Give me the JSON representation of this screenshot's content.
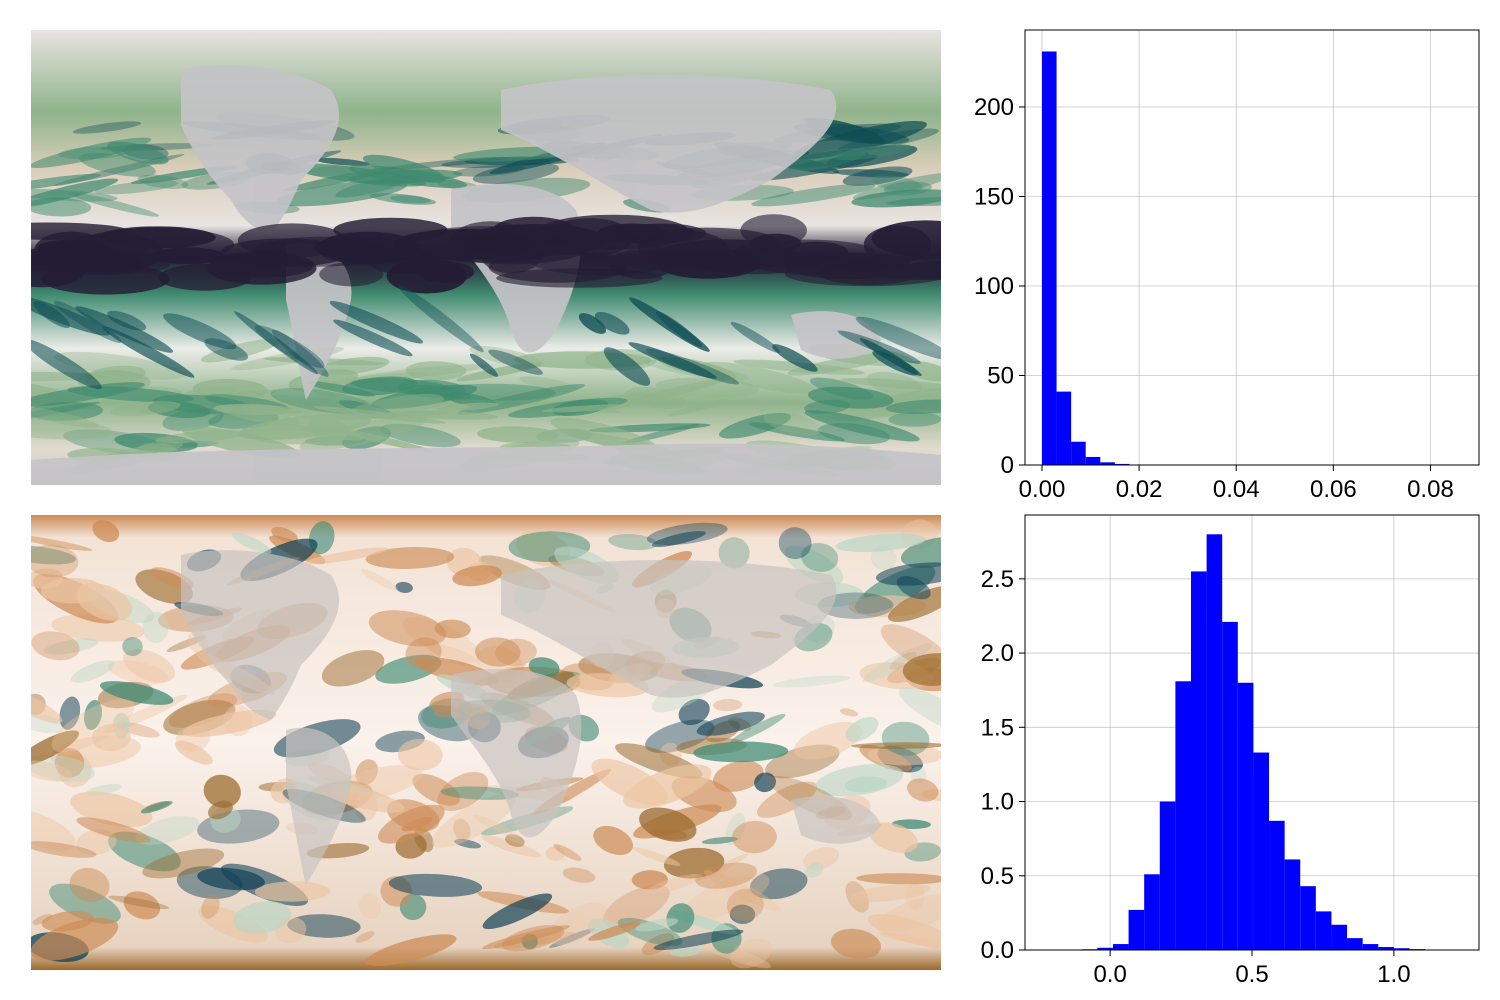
{
  "maps": [
    {
      "name": "precipitation-map",
      "colormap": [
        "#e9e4e2",
        "#d4b58f",
        "#c9d4b1",
        "#8fb38b",
        "#3f8a6f",
        "#0e4e54",
        "#241d34"
      ],
      "land_color": "#c4c3c7"
    },
    {
      "name": "anomaly-map",
      "colormap": [
        "#9b6a2d",
        "#cd8b55",
        "#ecc5a3",
        "#ffffff",
        "#b9d6c5",
        "#3e8a74",
        "#0d3f55"
      ],
      "land_color": "#c9c3c0"
    }
  ],
  "chart_data": [
    {
      "type": "bar",
      "title": "",
      "xlabel": "",
      "ylabel": "",
      "xlim": [
        -0.0035,
        0.09
      ],
      "ylim": [
        0,
        243
      ],
      "grid": true,
      "bar_color": "#0000ff",
      "bin_edges": [
        0.0,
        0.003,
        0.006,
        0.009,
        0.012,
        0.015,
        0.018,
        0.021,
        0.024,
        0.027,
        0.03,
        0.033,
        0.036,
        0.039,
        0.042,
        0.045,
        0.048,
        0.051,
        0.054,
        0.057,
        0.06,
        0.063,
        0.066,
        0.069,
        0.072,
        0.075,
        0.078,
        0.081,
        0.084,
        0.087,
        0.09
      ],
      "values": [
        231,
        41,
        13,
        4.5,
        1.5,
        0.6,
        0.25,
        0.1,
        0.05,
        0.03,
        0.02,
        0.01,
        0.01,
        0.005,
        0.005,
        0.003,
        0.002,
        0.001,
        0.001,
        0.001,
        0.001,
        0,
        0,
        0,
        0,
        0,
        0,
        0,
        0,
        0
      ],
      "xticks": [
        0.0,
        0.02,
        0.04,
        0.06,
        0.08
      ],
      "xtick_labels": [
        "0.00",
        "0.02",
        "0.04",
        "0.06",
        "0.08"
      ],
      "yticks": [
        0,
        50,
        100,
        150,
        200
      ],
      "ytick_labels": [
        "0",
        "50",
        "100",
        "150",
        "200"
      ]
    },
    {
      "type": "bar",
      "title": "",
      "xlabel": "",
      "ylabel": "",
      "xlim": [
        -0.3,
        1.3
      ],
      "ylim": [
        0,
        2.93
      ],
      "grid": true,
      "bar_color": "#0000ff",
      "bin_edges": [
        -0.1,
        -0.045,
        0.01,
        0.065,
        0.12,
        0.175,
        0.23,
        0.285,
        0.34,
        0.395,
        0.45,
        0.505,
        0.56,
        0.615,
        0.67,
        0.725,
        0.78,
        0.835,
        0.89,
        0.945,
        1.0,
        1.055,
        1.11,
        1.165,
        1.22
      ],
      "values": [
        0.005,
        0.015,
        0.04,
        0.27,
        0.51,
        1.0,
        1.81,
        2.55,
        2.8,
        2.21,
        1.8,
        1.33,
        0.87,
        0.61,
        0.43,
        0.26,
        0.17,
        0.08,
        0.04,
        0.02,
        0.012,
        0.006,
        0.003,
        0.001
      ],
      "xticks": [
        0.0,
        0.5,
        1.0
      ],
      "xtick_labels": [
        "0.0",
        "0.5",
        "1.0"
      ],
      "yticks": [
        0.0,
        0.5,
        1.0,
        1.5,
        2.0,
        2.5
      ],
      "ytick_labels": [
        "0.0",
        "0.5",
        "1.0",
        "1.5",
        "2.0",
        "2.5"
      ]
    }
  ]
}
